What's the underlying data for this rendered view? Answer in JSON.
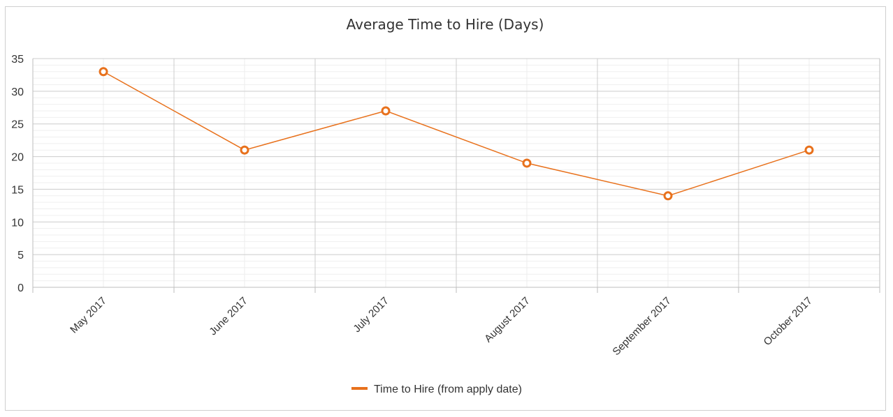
{
  "chart_data": {
    "type": "line",
    "title": "Average Time to Hire (Days)",
    "xlabel": "",
    "ylabel": "",
    "categories": [
      "May 2017",
      "June 2017",
      "July 2017",
      "August 2017",
      "September 2017",
      "October 2017"
    ],
    "series": [
      {
        "name": "Time to Hire (from apply date)",
        "values": [
          33,
          21,
          27,
          19,
          14,
          21
        ],
        "color": "#e8711c"
      }
    ],
    "ylim": [
      0,
      35
    ],
    "yticks": [
      "0",
      "5",
      "10",
      "15",
      "20",
      "25",
      "30",
      "35"
    ],
    "grid": true,
    "legend_position": "bottom"
  }
}
